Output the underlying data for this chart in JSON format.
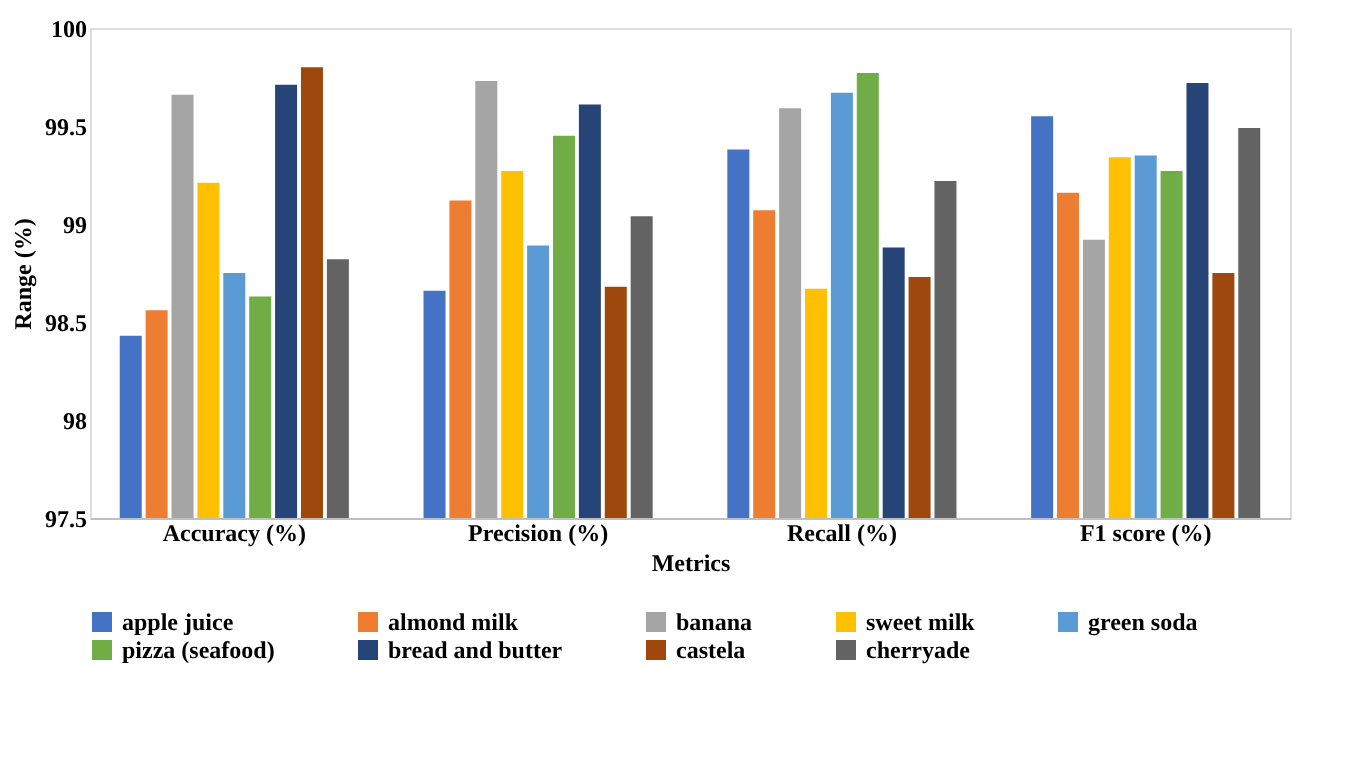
{
  "chart_data": {
    "type": "bar",
    "xlabel": "Metrics",
    "ylabel": "Range (%)",
    "categories": [
      "Accuracy (%)",
      "Precision (%)",
      "Recall (%)",
      "F1 score (%)"
    ],
    "series": [
      {
        "name": "apple juice",
        "color": "#4472c4",
        "values": [
          98.43,
          98.66,
          99.38,
          99.55
        ]
      },
      {
        "name": "almond milk",
        "color": "#ed7d31",
        "values": [
          98.56,
          99.12,
          99.07,
          99.16
        ]
      },
      {
        "name": "banana",
        "color": "#a5a5a5",
        "values": [
          99.66,
          99.73,
          99.59,
          98.92
        ]
      },
      {
        "name": "sweet milk",
        "color": "#ffc000",
        "values": [
          99.21,
          99.27,
          98.67,
          99.34
        ]
      },
      {
        "name": "green soda",
        "color": "#5b9bd5",
        "values": [
          98.75,
          98.89,
          99.67,
          99.35
        ]
      },
      {
        "name": "pizza (seafood)",
        "color": "#70ad47",
        "values": [
          98.63,
          99.45,
          99.77,
          99.27
        ]
      },
      {
        "name": "bread and butter",
        "color": "#264478",
        "values": [
          99.71,
          99.61,
          98.88,
          99.72
        ]
      },
      {
        "name": "castela",
        "color": "#9e480e",
        "values": [
          99.8,
          98.68,
          98.73,
          98.75
        ]
      },
      {
        "name": "cherryade",
        "color": "#636363",
        "values": [
          98.82,
          99.04,
          99.22,
          99.49
        ]
      }
    ],
    "ylim": [
      97.5,
      100
    ],
    "yticks": [
      97.5,
      98,
      98.5,
      99,
      99.5,
      100
    ],
    "grid": false,
    "legend": "bottom"
  }
}
